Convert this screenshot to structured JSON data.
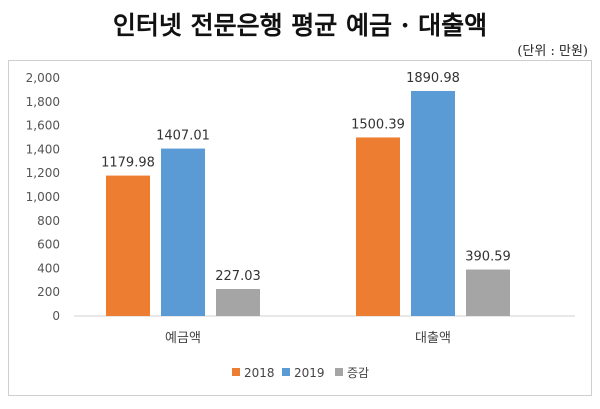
{
  "header": {
    "title": "인터넷 전문은행 평균 예금 · 대출액",
    "unit": "(단위 : 만원)"
  },
  "chart_data": {
    "type": "bar",
    "categories": [
      "예금액",
      "대출액"
    ],
    "series": [
      {
        "name": "2018",
        "color": "#ED7D31",
        "values": [
          1179.98,
          1500.39
        ]
      },
      {
        "name": "2019",
        "color": "#5B9BD5",
        "values": [
          1407.01,
          1890.98
        ]
      },
      {
        "name": "증감",
        "color": "#A5A5A5",
        "values": [
          227.03,
          390.59
        ]
      }
    ],
    "ylim": [
      0,
      2000
    ],
    "yticks": [
      0,
      200,
      400,
      600,
      800,
      1000,
      1200,
      1400,
      1600,
      1800,
      2000
    ],
    "ytick_labels": [
      "0",
      "200",
      "400",
      "600",
      "800",
      "1,000",
      "1,200",
      "1,400",
      "1,600",
      "1,800",
      "2,000"
    ],
    "grid": false,
    "legend_position": "bottom"
  }
}
